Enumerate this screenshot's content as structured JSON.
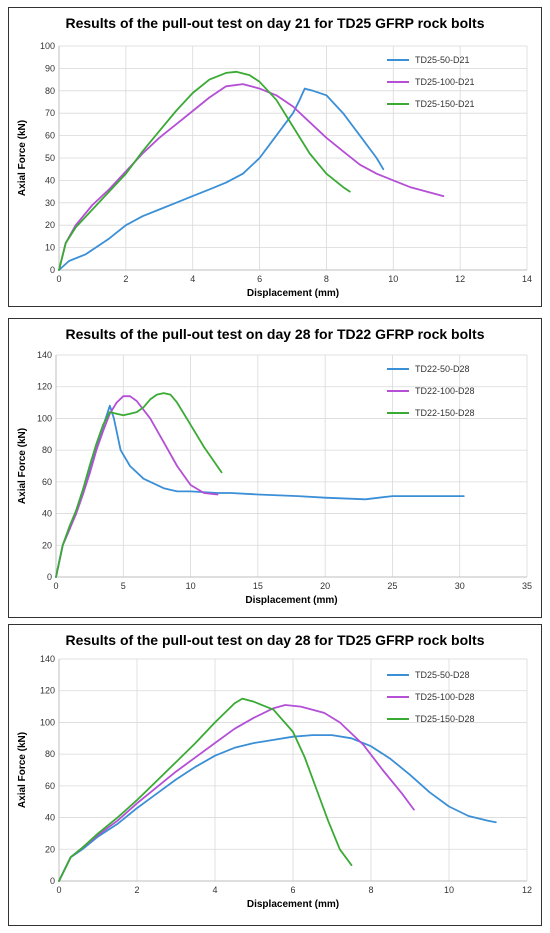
{
  "chart_data": [
    {
      "type": "line",
      "title": "Results of the pull-out test on day 21 for TD25 GFRP rock bolts",
      "xlabel": "Displacement (mm)",
      "ylabel": "Axial Force (kN)",
      "xlim": [
        0,
        14
      ],
      "ylim": [
        0,
        100
      ],
      "xticks": [
        0,
        2,
        4,
        6,
        8,
        10,
        12,
        14
      ],
      "yticks": [
        0,
        10,
        20,
        30,
        40,
        50,
        60,
        70,
        80,
        90,
        100
      ],
      "grid": true,
      "legend": "top-right",
      "series": [
        {
          "name": "TD25-50-D21",
          "color": "#3b8fd6",
          "x": [
            0,
            0.3,
            0.8,
            1.5,
            2,
            2.5,
            3,
            3.5,
            4,
            4.5,
            5,
            5.5,
            6,
            6.5,
            7,
            7.2,
            7.35,
            7.6,
            8,
            8.5,
            9,
            9.5,
            9.7
          ],
          "y": [
            0,
            4,
            7,
            14,
            20,
            24,
            27,
            30,
            33,
            36,
            39,
            43,
            50,
            60,
            70,
            76,
            81,
            80,
            78,
            70,
            60,
            50,
            45
          ]
        },
        {
          "name": "TD25-100-D21",
          "color": "#b44fd6",
          "x": [
            0,
            0.2,
            0.5,
            1,
            1.5,
            2,
            2.5,
            3,
            3.5,
            4,
            4.5,
            5,
            5.5,
            6,
            6.5,
            7,
            7.5,
            8,
            8.5,
            9,
            9.5,
            10,
            10.5,
            11,
            11.5
          ],
          "y": [
            0,
            12,
            20,
            29,
            36,
            44,
            52,
            59,
            65,
            71,
            77,
            82,
            83,
            81,
            78,
            73,
            66,
            59,
            53,
            47,
            43,
            40,
            37,
            35,
            33
          ]
        },
        {
          "name": "TD25-150-D21",
          "color": "#3aaa35",
          "x": [
            0,
            0.2,
            0.5,
            1,
            1.5,
            2,
            2.5,
            3,
            3.5,
            4,
            4.5,
            5,
            5.3,
            5.7,
            6,
            6.5,
            7,
            7.5,
            8,
            8.5,
            8.7
          ],
          "y": [
            0,
            12,
            19,
            27,
            35,
            43,
            53,
            62,
            71,
            79,
            85,
            88,
            88.5,
            87,
            84,
            76,
            64,
            52,
            43,
            37,
            35
          ]
        }
      ]
    },
    {
      "type": "line",
      "title": "Results of the pull-out test on day 28 for TD22 GFRP rock bolts",
      "xlabel": "Displacement (mm)",
      "ylabel": "Axial Force (kN)",
      "xlim": [
        0,
        35
      ],
      "ylim": [
        0,
        140
      ],
      "xticks": [
        0,
        5,
        10,
        15,
        20,
        25,
        30,
        35
      ],
      "yticks": [
        0,
        20,
        40,
        60,
        80,
        100,
        120,
        140
      ],
      "grid": true,
      "legend": "top-right",
      "series": [
        {
          "name": "TD22-50-D28",
          "color": "#3b8fd6",
          "x": [
            0,
            0.5,
            1,
            1.5,
            2,
            2.5,
            3,
            3.5,
            4,
            4.3,
            4.8,
            5.5,
            6.5,
            8,
            9,
            10,
            12,
            13,
            15,
            18,
            20,
            23,
            25,
            28,
            30.3
          ],
          "y": [
            0,
            20,
            30,
            42,
            55,
            68,
            82,
            95,
            108,
            100,
            80,
            70,
            62,
            56,
            54,
            54,
            53,
            53,
            52,
            51,
            50,
            49,
            51,
            51,
            51
          ]
        },
        {
          "name": "TD22-100-D28",
          "color": "#b44fd6",
          "x": [
            0,
            0.5,
            1,
            1.5,
            2,
            2.5,
            3,
            3.5,
            4,
            4.5,
            5,
            5.5,
            6,
            7,
            8,
            9,
            10,
            11,
            12
          ],
          "y": [
            0,
            20,
            30,
            40,
            52,
            65,
            80,
            92,
            103,
            110,
            114,
            114,
            111,
            100,
            85,
            70,
            58,
            53,
            52
          ]
        },
        {
          "name": "TD22-150-D28",
          "color": "#3aaa35",
          "x": [
            0,
            0.5,
            1,
            1.5,
            2,
            2.5,
            3,
            3.5,
            4,
            4.5,
            5,
            5.5,
            6,
            6.5,
            7,
            7.5,
            8,
            8.5,
            9,
            10,
            11,
            12.3
          ],
          "y": [
            0,
            20,
            32,
            42,
            55,
            70,
            84,
            96,
            104,
            103,
            102,
            103,
            104,
            107,
            112,
            115,
            116,
            115,
            110,
            96,
            82,
            66
          ]
        }
      ]
    },
    {
      "type": "line",
      "title": "Results of the pull-out test on day 28 for TD25 GFRP rock bolts",
      "xlabel": "Displacement (mm)",
      "ylabel": "Axial Force (kN)",
      "xlim": [
        0,
        12
      ],
      "ylim": [
        0,
        140
      ],
      "xticks": [
        0,
        2,
        4,
        6,
        8,
        10,
        12
      ],
      "yticks": [
        0,
        20,
        40,
        60,
        80,
        100,
        120,
        140
      ],
      "grid": true,
      "legend": "top-right",
      "series": [
        {
          "name": "TD25-50-D28",
          "color": "#3b8fd6",
          "x": [
            0,
            0.3,
            0.6,
            1,
            1.5,
            2,
            2.5,
            3,
            3.5,
            4,
            4.5,
            5,
            5.5,
            6,
            6.5,
            7,
            7.5,
            8,
            8.5,
            9,
            9.5,
            10,
            10.5,
            11,
            11.2
          ],
          "y": [
            0,
            15,
            20,
            28,
            36,
            46,
            55,
            64,
            72,
            79,
            84,
            87,
            89,
            91,
            92,
            92,
            90,
            85,
            77,
            67,
            56,
            47,
            41,
            38,
            37
          ]
        },
        {
          "name": "TD25-100-D28",
          "color": "#b44fd6",
          "x": [
            0,
            0.3,
            0.6,
            1,
            1.5,
            2,
            2.5,
            3,
            3.5,
            4,
            4.5,
            5,
            5.5,
            5.8,
            6.2,
            6.8,
            7.2,
            7.8,
            8.3,
            8.8,
            9.1
          ],
          "y": [
            0,
            15,
            21,
            29,
            38,
            49,
            59,
            69,
            78,
            87,
            96,
            103,
            109,
            111,
            110,
            106,
            100,
            86,
            70,
            55,
            45
          ]
        },
        {
          "name": "TD25-150-D28",
          "color": "#3aaa35",
          "x": [
            0,
            0.3,
            0.6,
            1,
            1.5,
            2,
            2.5,
            3,
            3.5,
            4,
            4.5,
            4.7,
            5,
            5.5,
            6,
            6.3,
            6.6,
            6.9,
            7.2,
            7.5
          ],
          "y": [
            0,
            15,
            21,
            30,
            40,
            51,
            63,
            75,
            87,
            100,
            112,
            115,
            113,
            108,
            94,
            78,
            58,
            38,
            20,
            10
          ]
        }
      ]
    }
  ]
}
